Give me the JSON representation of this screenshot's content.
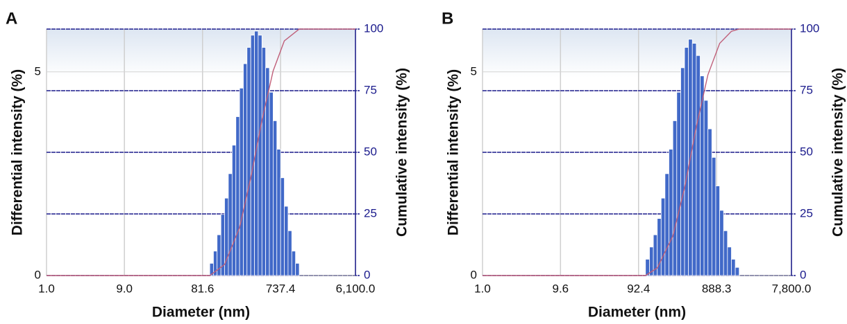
{
  "chart_data": [
    {
      "type": "histogram",
      "panel": "A",
      "xlabel": "Diameter (nm)",
      "ylabel": "Differential intensity (%)",
      "y2label": "Cumulative intensity (%)",
      "log_x": true,
      "xlim": [
        1,
        6100
      ],
      "xticks": [
        {
          "value": 1,
          "label": "1.0"
        },
        {
          "value": 9,
          "label": "9.0"
        },
        81.6,
        737.4,
        {
          "value": 6100,
          "label": "6,100.0"
        }
      ],
      "ylim": [
        0,
        6.05
      ],
      "yticks": [
        0,
        5
      ],
      "y2lim": [
        0,
        100
      ],
      "y2ticks": [
        0,
        25,
        50,
        75,
        100
      ],
      "grid": true,
      "bins": [
        100,
        111,
        123,
        137,
        152,
        169,
        188,
        209,
        232,
        258,
        286,
        318,
        353,
        392,
        436,
        484,
        538,
        598,
        664,
        738,
        820,
        911,
        1012,
        1124,
        1249
      ],
      "values": [
        0.3,
        0.6,
        1.0,
        1.5,
        1.9,
        2.5,
        3.2,
        3.9,
        4.6,
        5.2,
        5.6,
        5.9,
        6.0,
        5.9,
        5.6,
        5.1,
        4.5,
        3.8,
        3.1,
        2.4,
        1.7,
        1.1,
        0.6,
        0.3
      ],
      "color": "#4169c8",
      "cumulative": {
        "axis": "y2",
        "color": "#c0607a",
        "x": [
          1,
          100,
          152,
          232,
          318,
          436,
          598,
          820,
          1249,
          6100
        ],
        "values": [
          0,
          0,
          4.5,
          19.5,
          39.7,
          63.0,
          83.0,
          95.2,
          100,
          100
        ]
      }
    },
    {
      "type": "histogram",
      "panel": "B",
      "xlabel": "Diameter (nm)",
      "ylabel": "Differential intensity (%)",
      "y2label": "Cumulative intensity (%)",
      "log_x": true,
      "xlim": [
        1,
        7800
      ],
      "xticks": [
        {
          "value": 1,
          "label": "1.0"
        },
        9.6,
        92.4,
        888.3,
        {
          "value": 7800,
          "label": "7,800.0"
        }
      ],
      "ylim": [
        0,
        6.05
      ],
      "yticks": [
        0,
        5
      ],
      "y2lim": [
        0,
        100
      ],
      "y2ticks": [
        0,
        25,
        50,
        75,
        100
      ],
      "grid": true,
      "bins": [
        113,
        127,
        142,
        159,
        178,
        199,
        223,
        250,
        280,
        314,
        351,
        393,
        440,
        493,
        552,
        618,
        692,
        775,
        868,
        972,
        1089,
        1219,
        1366,
        1529,
        1713
      ],
      "values": [
        0.4,
        0.7,
        1.0,
        1.4,
        1.9,
        2.5,
        3.1,
        3.8,
        4.5,
        5.1,
        5.6,
        5.8,
        5.7,
        5.4,
        4.9,
        4.3,
        3.6,
        2.9,
        2.2,
        1.6,
        1.1,
        0.7,
        0.4,
        0.2
      ],
      "color": "#4169c8",
      "cumulative": {
        "axis": "y2",
        "color": "#c0607a",
        "x": [
          1,
          113,
          159,
          250,
          351,
          493,
          692,
          972,
          1366,
          1713,
          7800
        ],
        "values": [
          0,
          0,
          3.1,
          16.0,
          35.5,
          60.3,
          81.5,
          94.2,
          99.1,
          100,
          100
        ]
      }
    }
  ]
}
